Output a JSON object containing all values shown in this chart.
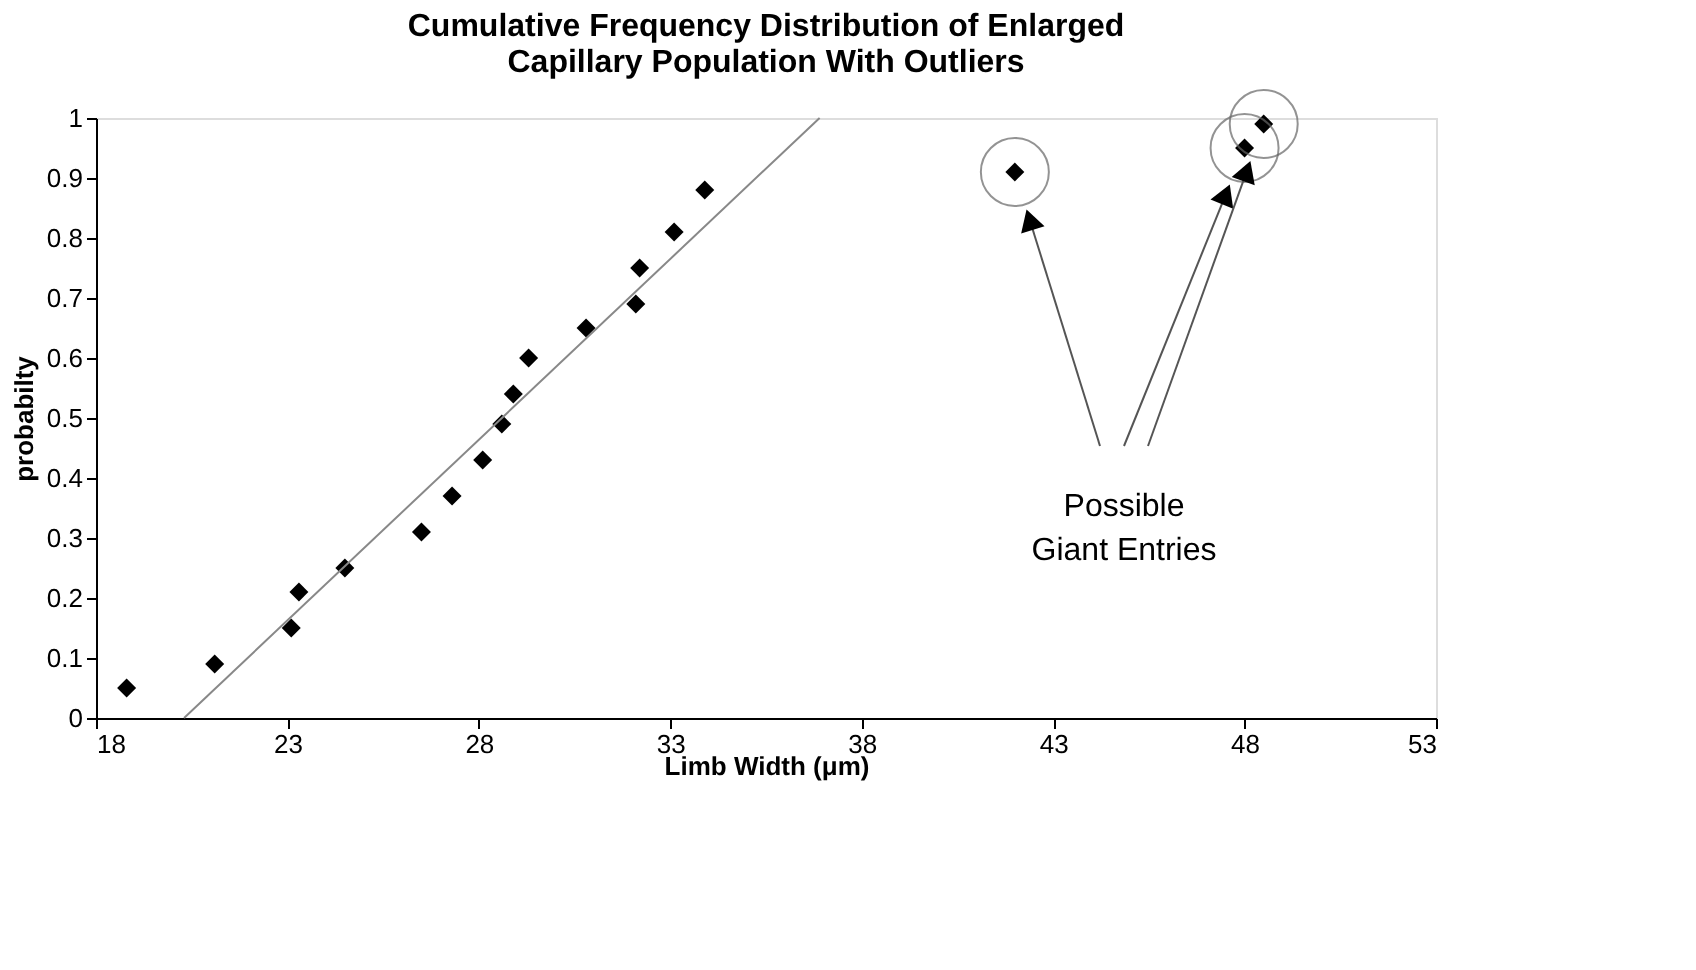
{
  "chart_data": {
    "type": "scatter",
    "title": [
      "Cumulative Frequency Distribution of Enlarged",
      "Capillary Population With Outliers"
    ],
    "xlabel": "Limb Width (μm)",
    "ylabel": "probabilty",
    "series": [
      {
        "color": "#000000",
        "marker": "diamond",
        "x": [
          18.8,
          21.1,
          23.1,
          23.3,
          24.5,
          26.5,
          27.3,
          28.1,
          28.6,
          28.9,
          29.3,
          30.8,
          32.1,
          32.2,
          33.1,
          33.9,
          42.0,
          48.0,
          48.5
        ],
        "values": [
          0.05,
          0.09,
          0.15,
          0.21,
          0.25,
          0.31,
          0.37,
          0.43,
          0.49,
          0.54,
          0.6,
          0.65,
          0.69,
          0.75,
          0.81,
          0.88,
          0.91,
          0.95,
          0.99
        ]
      },
      {
        "type": "line",
        "color": "#888888",
        "marker": "none",
        "x": [
          20.3,
          36.9
        ],
        "values": [
          0,
          1
        ]
      }
    ],
    "xlim": [
      18,
      53
    ],
    "xticks": [
      18,
      23,
      28,
      33,
      38,
      43,
      48,
      53
    ],
    "ylim": [
      0,
      1
    ],
    "yticks": [
      0,
      0.1,
      0.2,
      0.3,
      0.4,
      0.5,
      0.6,
      0.7,
      0.8,
      0.9,
      1
    ],
    "grid": false,
    "annotations": [
      "Possible Giant Entries"
    ]
  }
}
